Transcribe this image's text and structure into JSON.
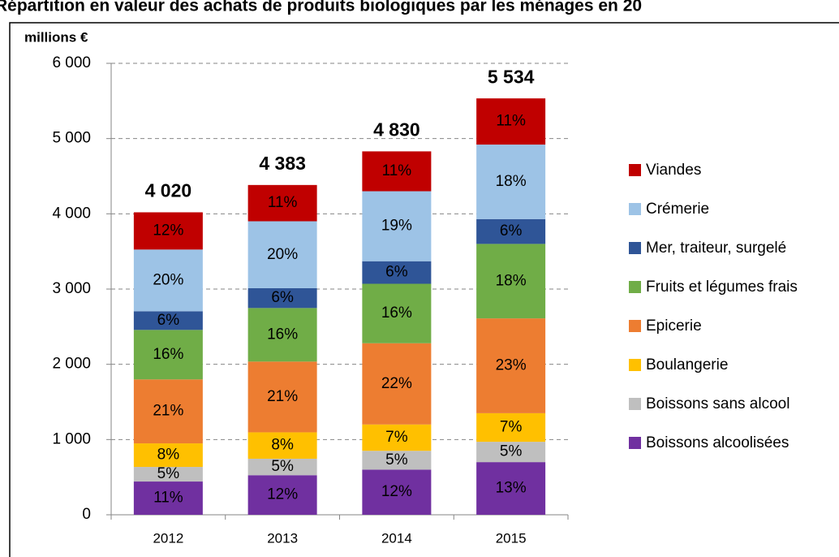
{
  "chart_data": {
    "type": "stacked_bar",
    "title": "Répartition en valeur des achats de produits biologiques par les ménages en 20",
    "y_label": "millions €",
    "categories": [
      "2012",
      "2013",
      "2014",
      "2015"
    ],
    "series": [
      {
        "name": "Boissons alcoolisées",
        "color": "#7030a0",
        "values": [
          442,
          526,
          600,
          700
        ],
        "value_labels": [
          "11%",
          "12%",
          "12%",
          "13%"
        ]
      },
      {
        "name": "Boissons sans alcool",
        "color": "#bfbfbf",
        "values": [
          194,
          219,
          250,
          270
        ],
        "value_labels": [
          "5%",
          "5%",
          "5%",
          "5%"
        ]
      },
      {
        "name": "Boulangerie",
        "color": "#ffc000",
        "values": [
          313,
          351,
          350,
          380
        ],
        "value_labels": [
          "8%",
          "8%",
          "7%",
          "7%"
        ]
      },
      {
        "name": "Epicerie",
        "color": "#ed7d31",
        "values": [
          850,
          940,
          1080,
          1260
        ],
        "value_labels": [
          "21%",
          "21%",
          "22%",
          "23%"
        ]
      },
      {
        "name": "Fruits et légumes frais",
        "color": "#70ad47",
        "values": [
          658,
          712,
          790,
          990
        ],
        "value_labels": [
          "16%",
          "16%",
          "16%",
          "18%"
        ]
      },
      {
        "name": "Mer, traiteur, surgelé",
        "color": "#2f5597",
        "values": [
          248,
          263,
          300,
          330
        ],
        "value_labels": [
          "6%",
          "6%",
          "6%",
          "6%"
        ]
      },
      {
        "name": "Crémerie",
        "color": "#9dc3e6",
        "values": [
          820,
          890,
          930,
          990
        ],
        "value_labels": [
          "20%",
          "20%",
          "19%",
          "18%"
        ]
      },
      {
        "name": "Viandes",
        "color": "#c00000",
        "values": [
          495,
          482,
          530,
          614
        ],
        "value_labels": [
          "12%",
          "11%",
          "11%",
          "11%"
        ]
      }
    ],
    "totals": [
      4020,
      4383,
      4830,
      5534
    ],
    "totals_labels": [
      "4 020",
      "4 383",
      "4 830",
      "5 534"
    ],
    "ylim": [
      0,
      6000
    ],
    "yticks": [
      0,
      {
        "value": 1000,
        "label": "1 000"
      },
      {
        "value": 2000,
        "label": "2 000"
      },
      {
        "value": 3000,
        "label": "3 000"
      },
      {
        "value": 4000,
        "label": "4 000"
      },
      {
        "value": 5000,
        "label": "5 000"
      },
      {
        "value": 6000,
        "label": "6 000"
      }
    ],
    "grid": true,
    "legend": "right"
  }
}
